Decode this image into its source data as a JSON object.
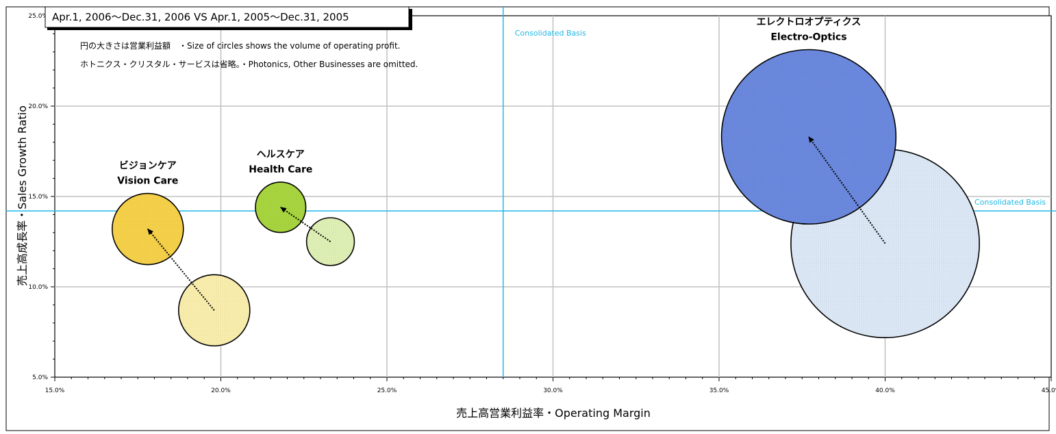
{
  "chart_data": {
    "type": "bubble",
    "title": "Apr.1, 2006〜Dec.31, 2006 VS Apr.1, 2005〜Dec.31, 2005",
    "xlabel": "売上高営業利益率・Operating Margin",
    "ylabel": "売上高成長率・Sales Growth Ratio",
    "xlim": [
      15,
      45
    ],
    "ylim": [
      5,
      25
    ],
    "x_ticks": [
      "15.0%",
      "20.0%",
      "25.0%",
      "30.0%",
      "35.0%",
      "40.0%",
      "45.0%"
    ],
    "y_ticks": [
      "5.0%",
      "10.0%",
      "15.0%",
      "20.0%",
      "25.0%"
    ],
    "grid": true,
    "notes": [
      "円の大きさは営業利益額　・Size of circles shows the volume of operating profit.",
      "ホトニクス・クリスタル・サービスは省略。・Photonics, Other Businesses are omitted."
    ],
    "reference_lines": {
      "label": "Consolidated  Basis",
      "x": 28.5,
      "y": 14.2
    },
    "segments": [
      {
        "name_ja": "ビジョンケア",
        "name_en": "Vision Care",
        "color": "#f7d24a",
        "color_prev": "#fbefae",
        "current": {
          "x": 17.8,
          "y": 13.2
        },
        "previous": {
          "x": 19.8,
          "y": 8.7
        },
        "size_current": 1.0,
        "size_previous": 1.0
      },
      {
        "name_ja": "ヘルスケア",
        "name_en": "Health Care",
        "color": "#a9d63f",
        "color_prev": "#e0f1b6",
        "current": {
          "x": 21.8,
          "y": 14.4
        },
        "previous": {
          "x": 23.3,
          "y": 12.5
        },
        "size_current": 0.5,
        "size_previous": 0.45
      },
      {
        "name_ja": "エレクトロオプティクス",
        "name_en": "Electro-Optics",
        "color": "#6b89df",
        "color_prev": "#dde9f7",
        "current": {
          "x": 37.7,
          "y": 18.3
        },
        "previous": {
          "x": 40.0,
          "y": 12.4
        },
        "size_current": 6.0,
        "size_previous": 7.0
      }
    ]
  }
}
